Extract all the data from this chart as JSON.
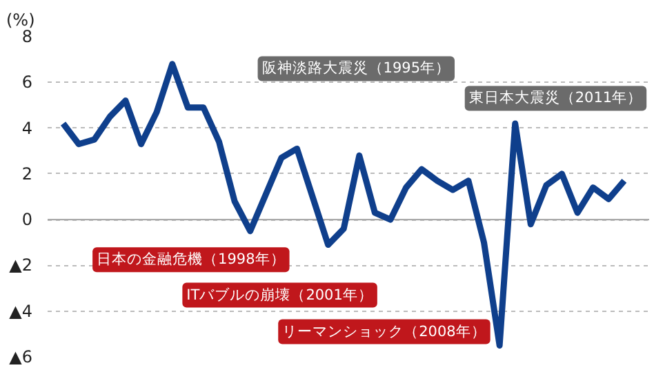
{
  "chart_data": {
    "type": "line",
    "ylabel": "(%)",
    "categories": [
      null,
      null,
      null,
      null,
      null,
      null,
      null,
      null,
      null,
      null,
      null,
      null,
      null,
      null,
      null,
      null,
      null,
      null,
      null,
      null,
      null,
      null,
      null,
      null,
      null,
      null,
      null,
      null,
      null,
      null,
      null,
      null,
      null,
      null,
      null,
      null,
      null
    ],
    "series": [
      {
        "color": "#0f3f8c",
        "values": [
          4.2,
          3.3,
          3.5,
          4.5,
          5.2,
          3.3,
          4.7,
          6.8,
          4.9,
          4.9,
          3.4,
          0.8,
          -0.5,
          1.1,
          2.7,
          3.1,
          1.0,
          -1.1,
          -0.4,
          2.8,
          0.3,
          0.0,
          1.4,
          2.2,
          1.7,
          1.3,
          1.7,
          -1.0,
          -5.5,
          4.2,
          -0.2,
          1.5,
          2.0,
          0.3,
          1.4,
          0.9,
          1.7
        ]
      }
    ],
    "ylim": [
      -6,
      8
    ],
    "yticks": [
      {
        "value": -6,
        "label": "▲6"
      },
      {
        "value": -4,
        "label": "▲4"
      },
      {
        "value": -2,
        "label": "▲2"
      },
      0,
      2,
      4,
      6,
      8
    ],
    "tick_labels": "y",
    "grid": "y",
    "ref_lines": [
      {
        "axis": "y",
        "value": 0,
        "color": "#aaaaaa"
      }
    ],
    "annotations": [
      "阪神淡路大震災（1995年）",
      "東日本大震災（2011年）",
      "日本の金融危機（1998年）",
      "ITバブルの崩壊（2001年）",
      "リーマンショック（2008年）"
    ]
  }
}
